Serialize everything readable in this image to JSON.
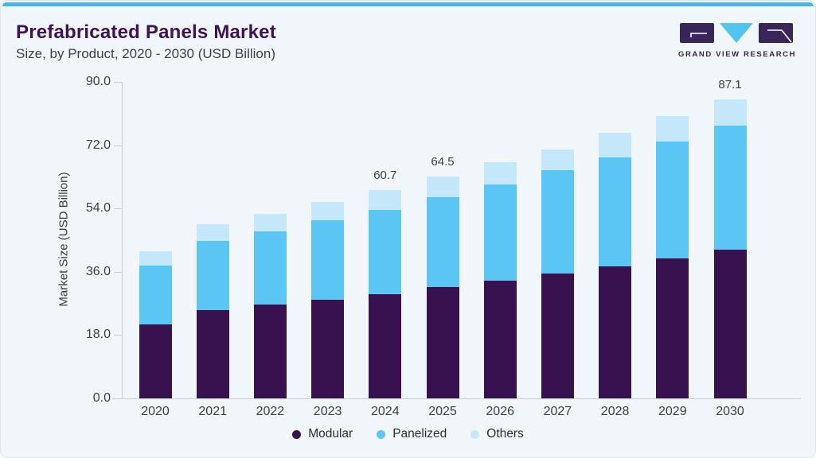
{
  "header": {
    "title": "Prefabricated Panels Market",
    "subtitle": "Size, by Product, 2020 - 2030 (USD Billion)"
  },
  "logo": {
    "name": "Grand View Research logo",
    "text": "GRAND VIEW RESEARCH",
    "purple": "#362659",
    "blue": "#53c3ef"
  },
  "colors": {
    "accent_strip": "#4ab5e8",
    "card_background": "#f0f6fa",
    "title_text": "#3e1253",
    "axis": "#c9cfd8",
    "label_text": "#3f3f46"
  },
  "chart_data": {
    "type": "bar",
    "stacked": true,
    "title": "Prefabricated Panels Market Size, by Product, 2020 - 2030 (USD Billion)",
    "categories": [
      "2020",
      "2021",
      "2022",
      "2023",
      "2024",
      "2025",
      "2026",
      "2027",
      "2028",
      "2029",
      "2030"
    ],
    "series": [
      {
        "name": "Modular",
        "color": "#38124e",
        "values": [
          21.6,
          25.7,
          27.2,
          28.7,
          30.3,
          32.4,
          34.3,
          36.3,
          38.4,
          40.8,
          43.2
        ]
      },
      {
        "name": "Panelized",
        "color": "#5bc6f3",
        "values": [
          17.1,
          20.2,
          21.4,
          23.2,
          24.6,
          26.2,
          28.0,
          30.1,
          31.8,
          34.0,
          36.3
        ]
      },
      {
        "name": "Others",
        "color": "#c4e8fa",
        "values": [
          4.1,
          4.8,
          5.0,
          5.3,
          5.8,
          5.9,
          6.4,
          6.1,
          7.2,
          7.4,
          7.6
        ]
      }
    ],
    "totals": [
      42.8,
      50.7,
      53.6,
      57.2,
      60.7,
      64.5,
      68.7,
      72.5,
      77.4,
      82.2,
      87.1
    ],
    "data_labels": [
      {
        "category": "2024",
        "text": "60.7"
      },
      {
        "category": "2025",
        "text": "64.5"
      },
      {
        "category": "2030",
        "text": "87.1"
      }
    ],
    "ylabel": "Market Size (USD Billion)",
    "xlabel": "",
    "yticks": [
      "0.0",
      "18.0",
      "36.0",
      "54.0",
      "72.0",
      "90.0"
    ],
    "ytick_values": [
      0,
      18,
      36,
      54,
      72,
      90
    ],
    "ylim": [
      0,
      90
    ],
    "grid": false,
    "legend_position": "bottom"
  },
  "legend": {
    "items": [
      {
        "label": "Modular"
      },
      {
        "label": "Panelized"
      },
      {
        "label": "Others"
      }
    ]
  }
}
